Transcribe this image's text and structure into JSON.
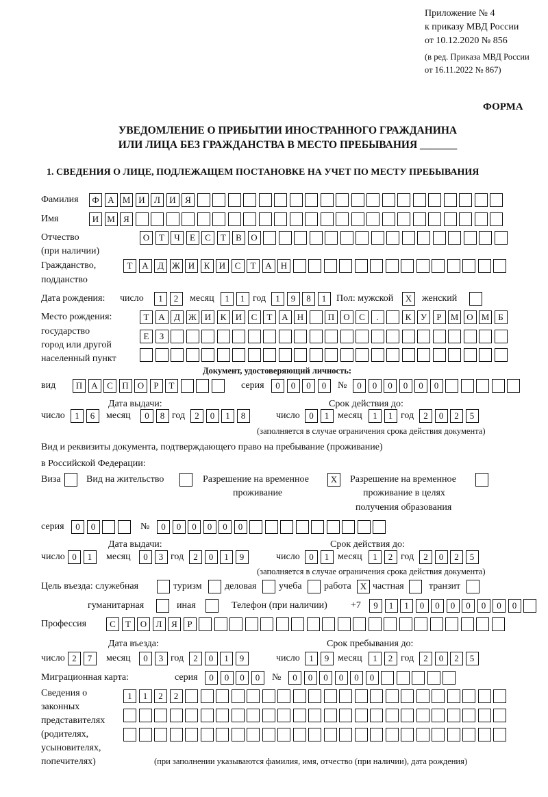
{
  "header": {
    "line1": "Приложение № 4",
    "line2": "к приказу МВД России",
    "line3": "от 10.12.2020 № 856",
    "line4": "(в ред. Приказа МВД России",
    "line5": "от 16.11.2022 № 867)",
    "form": "ФОРМА"
  },
  "title": {
    "line1": "УВЕДОМЛЕНИЕ О ПРИБЫТИИ ИНОСТРАННОГО ГРАЖДАНИНА",
    "line2": "ИЛИ ЛИЦА БЕЗ ГРАЖДАНСТВА В МЕСТО ПРЕБЫВАНИЯ _______"
  },
  "section1": "1. СВЕДЕНИЯ О ЛИЦЕ, ПОДЛЕЖАЩЕМ ПОСТАНОВКЕ НА УЧЕТ ПО МЕСТУ ПРЕБЫВАНИЯ",
  "labels": {
    "surname": "Фамилия",
    "name": "Имя",
    "patronymic1": "Отчество",
    "patronymic2": "(при наличии)",
    "citizenship1": "Гражданство,",
    "citizenship2": "подданство",
    "birthdate": "Дата рождения:",
    "day": "число",
    "month": "месяц",
    "year": "год",
    "sex": "Пол: мужской",
    "female": "женский",
    "birthplace1": "Место рождения:",
    "birthplace2": "государство",
    "birthplace3": "город или другой",
    "birthplace4": "населенный пункт",
    "iddoc": "Документ, удостоверяющий личность:",
    "kind": "вид",
    "series": "серия",
    "number": "№",
    "issued": "Дата выдачи:",
    "valid": "Срок действия до:",
    "validnote": "(заполняется в случае ограничения срока действия документа)",
    "rightdoc1": "Вид и реквизиты документа, подтверждающего право на пребывание (проживание)",
    "rightdoc2": "в Российской Федерации:",
    "visa": "Виза",
    "residence": "Вид на жительство",
    "trp1": "Разрешение на временное",
    "trp2": "проживание",
    "trpe1": "Разрешение на временное",
    "trpe2": "проживание в целях",
    "trpe3": "получения образования",
    "purpose": "Цель въезда: служебная",
    "tourism": "туризм",
    "business": "деловая",
    "study": "учеба",
    "work": "работа",
    "private": "частная",
    "transit": "транзит",
    "humanitarian": "гуманитарная",
    "other": "иная",
    "phone": "Телефон (при наличии)",
    "phoneprefix": "+7",
    "profession": "Профессия",
    "entry": "Дата въезда:",
    "stayuntil": "Срок пребывания до:",
    "migcard": "Миграционная карта:",
    "reps1": "Сведения о",
    "reps2": "законных",
    "reps3": "представителях",
    "reps4": "(родителях,",
    "reps5": "усыновителях,",
    "reps6": "попечителях)",
    "repsnote": "(при заполнении указываются фамилия, имя, отчество (при наличии), дата рождения)"
  },
  "values": {
    "surname": "ФАМИЛИЯ",
    "name": "ИМЯ",
    "patronymic": "ОТЧЕСТВО",
    "citizenship": "ТАДЖИКИСТАН",
    "birth_day": "12",
    "birth_month": "11",
    "birth_year": "1981",
    "male": "X",
    "female": "",
    "birthplace1": "ТАДЖИКИСТАН ПОС. КУРМОМБ",
    "birthplace2": "ЕЗ",
    "birthplace3": "",
    "doc_kind": "ПАСПОРТ",
    "doc_series": "0000",
    "doc_number": "000000",
    "doc_issue_day": "16",
    "doc_issue_month": "08",
    "doc_issue_year": "2018",
    "doc_valid_day": "01",
    "doc_valid_month": "11",
    "doc_valid_year": "2025",
    "visa": "",
    "residence": "",
    "trp": "X",
    "trpe": "",
    "right_series": "00",
    "right_number": "000000",
    "right_issue_day": "01",
    "right_issue_month": "03",
    "right_issue_year": "2019",
    "right_valid_day": "01",
    "right_valid_month": "12",
    "right_valid_year": "2025",
    "p_service": "",
    "p_tourism": "",
    "p_business": "",
    "p_study": "",
    "p_work": "X",
    "p_private": "",
    "p_transit": "",
    "p_humanitarian": "",
    "p_other": "",
    "phone": "9110000000",
    "profession": "СТОЛЯР",
    "entry_day": "27",
    "entry_month": "03",
    "entry_year": "2019",
    "stay_day": "19",
    "stay_month": "12",
    "stay_year": "2025",
    "mig_series": "0000",
    "mig_number": "000000",
    "reps1": "1122",
    "reps2": "",
    "reps3": ""
  }
}
